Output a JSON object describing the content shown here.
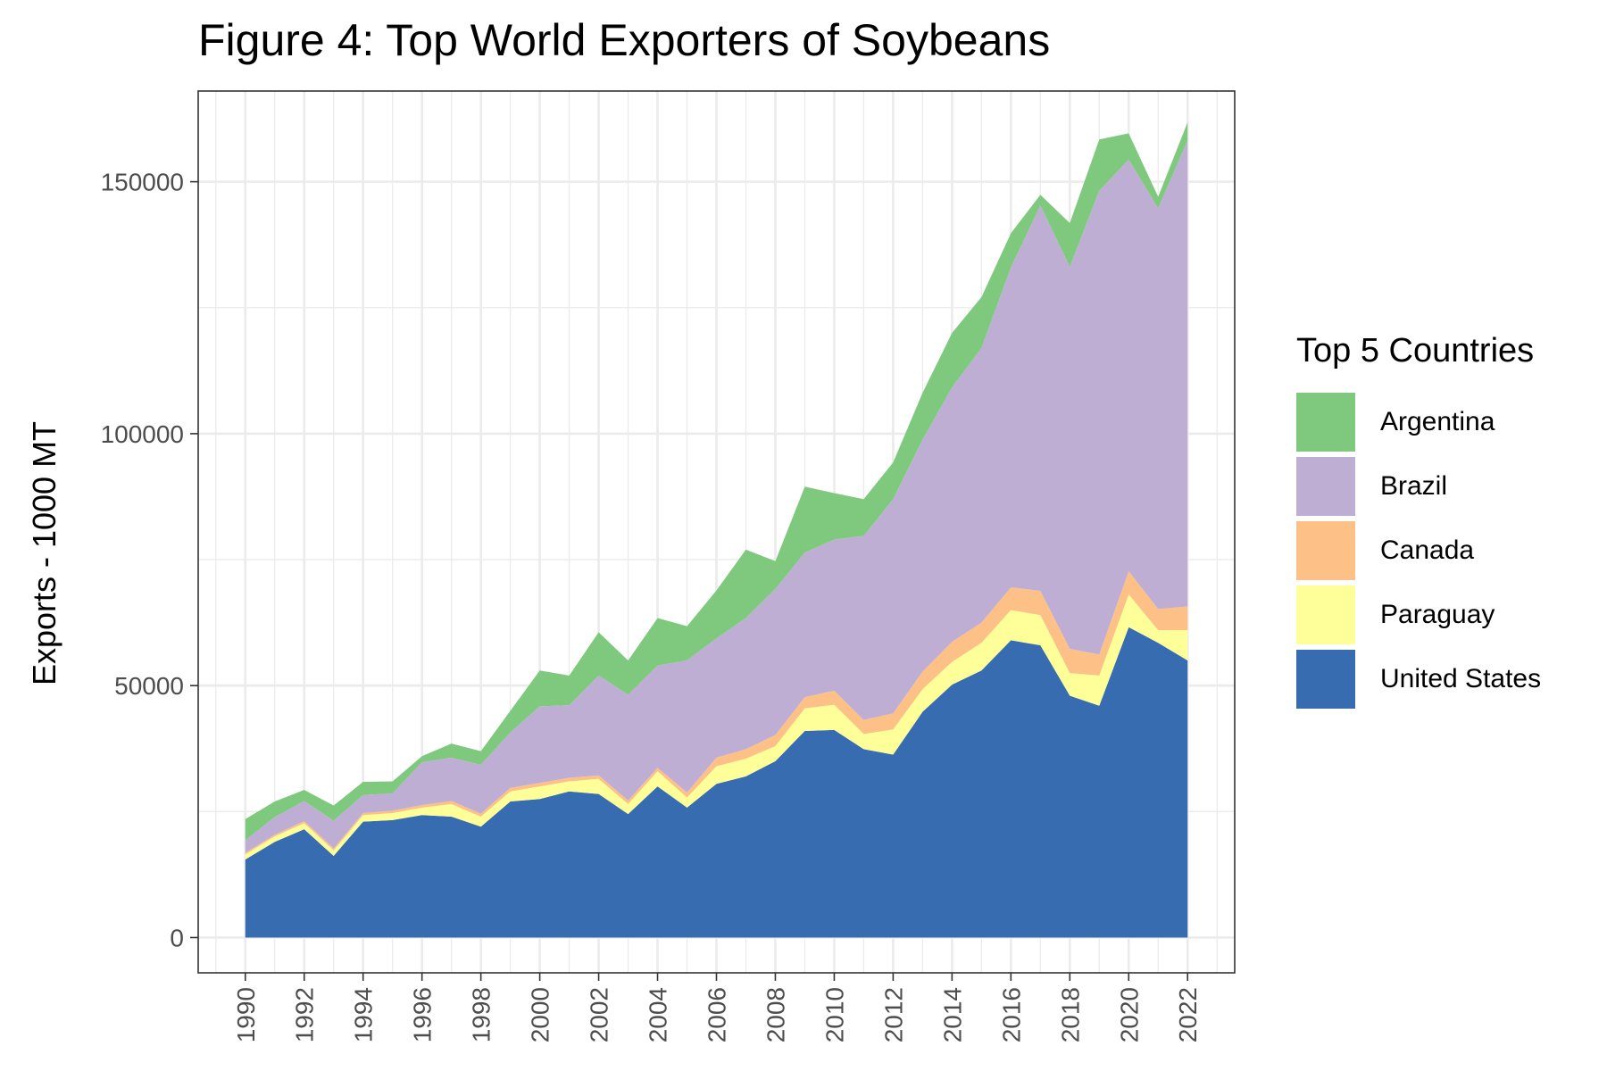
{
  "chart_data": {
    "type": "area",
    "stacked": true,
    "title": "Figure 4: Top World Exporters of Soybeans",
    "xlabel": "",
    "ylabel": "Exports - 1000 MT",
    "legend_title": "Top 5 Countries",
    "legend_placement": "right",
    "grid": true,
    "xlim": [
      1988.4,
      2023.6
    ],
    "ylim": [
      -7000,
      168000
    ],
    "x_ticks": [
      1990,
      1992,
      1994,
      1996,
      1998,
      2000,
      2002,
      2004,
      2006,
      2008,
      2010,
      2012,
      2014,
      2016,
      2018,
      2020,
      2022
    ],
    "y_ticks": [
      0,
      50000,
      100000,
      150000
    ],
    "x": [
      1990,
      1991,
      1992,
      1993,
      1994,
      1995,
      1996,
      1997,
      1998,
      1999,
      2000,
      2001,
      2002,
      2003,
      2004,
      2005,
      2006,
      2007,
      2008,
      2009,
      2010,
      2011,
      2012,
      2013,
      2014,
      2015,
      2016,
      2017,
      2018,
      2019,
      2020,
      2021,
      2022
    ],
    "series": [
      {
        "name": "United States",
        "color": "#386cb0",
        "values": [
          15500,
          19000,
          21500,
          16200,
          23000,
          23300,
          24300,
          24000,
          22000,
          27000,
          27500,
          29000,
          28500,
          24500,
          30000,
          25800,
          30500,
          32000,
          35000,
          41000,
          41200,
          37400,
          36300,
          44800,
          50200,
          53000,
          59000,
          58000,
          48000,
          46000,
          61600,
          58500,
          55000
        ]
      },
      {
        "name": "Paraguay",
        "color": "#ffff99",
        "values": [
          1000,
          1100,
          1200,
          1100,
          1300,
          1400,
          1500,
          2500,
          2000,
          2000,
          2500,
          2000,
          3000,
          2000,
          3000,
          2000,
          3500,
          3500,
          3000,
          4500,
          5000,
          3000,
          5000,
          4500,
          4500,
          5500,
          6000,
          6000,
          4500,
          6000,
          6500,
          2500,
          6000
        ]
      },
      {
        "name": "Canada",
        "color": "#fdc086",
        "values": [
          300,
          300,
          400,
          400,
          400,
          500,
          500,
          600,
          600,
          700,
          700,
          700,
          700,
          700,
          700,
          1000,
          1700,
          1900,
          2200,
          2200,
          2800,
          2800,
          3200,
          3500,
          4000,
          4000,
          4500,
          4800,
          4800,
          4200,
          4600,
          4200,
          4700
        ]
      },
      {
        "name": "Brazil",
        "color": "#beaed4",
        "values": [
          2500,
          3500,
          4000,
          5500,
          3600,
          3400,
          8500,
          8600,
          9700,
          11000,
          15200,
          14400,
          19800,
          21000,
          20300,
          26200,
          23700,
          26000,
          29000,
          28700,
          30000,
          36500,
          42500,
          46000,
          50500,
          54500,
          63500,
          76500,
          75800,
          92000,
          81700,
          79500,
          92500
        ]
      },
      {
        "name": "Argentina",
        "color": "#7fc97f",
        "values": [
          4200,
          3100,
          2200,
          3000,
          2600,
          2400,
          1200,
          2800,
          2700,
          4300,
          7100,
          5900,
          8600,
          6800,
          9400,
          6800,
          9500,
          13600,
          5500,
          13100,
          9200,
          7300,
          7300,
          9300,
          10800,
          10100,
          6800,
          2100,
          8700,
          10200,
          5200,
          2300,
          3600
        ]
      }
    ]
  }
}
